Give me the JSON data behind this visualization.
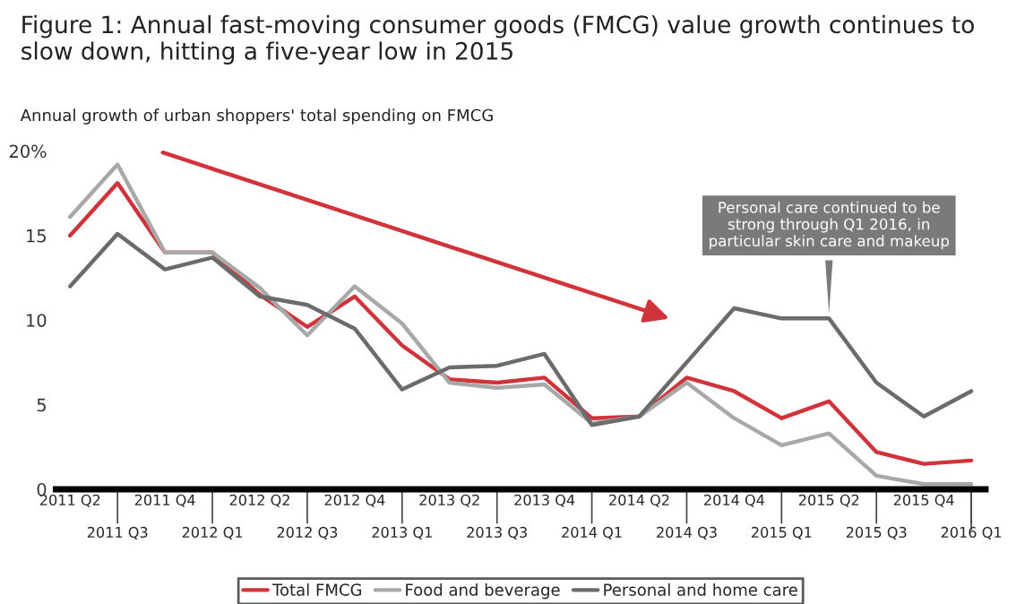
{
  "chart_data": {
    "type": "line",
    "title": "Figure 1: Annual fast-moving consumer goods (FMCG) value growth continues to slow down, hitting a five-year low in 2015",
    "subtitle": "Annual growth of urban shoppers' total spending on FMCG",
    "categories": [
      "2011 Q2",
      "2011 Q3",
      "2011 Q4",
      "2012 Q1",
      "2012 Q2",
      "2012 Q3",
      "2012 Q4",
      "2013 Q1",
      "2013 Q2",
      "2013 Q3",
      "2013 Q4",
      "2014 Q1",
      "2014 Q2",
      "2014 Q3",
      "2014 Q4",
      "2015 Q1",
      "2015 Q2",
      "2015 Q3",
      "2015 Q4",
      "2016 Q1"
    ],
    "series": [
      {
        "name": "Total FMCG",
        "color": "#d0343a",
        "values": [
          15.0,
          18.1,
          14.0,
          14.0,
          11.5,
          9.6,
          11.4,
          8.5,
          6.5,
          6.3,
          6.6,
          4.2,
          4.3,
          6.6,
          5.8,
          4.2,
          5.2,
          2.2,
          1.5,
          1.7
        ]
      },
      {
        "name": "Food and beverage",
        "color": "#a8a8a8",
        "values": [
          16.1,
          19.2,
          14.0,
          14.0,
          11.9,
          9.1,
          12.0,
          9.8,
          6.3,
          6.0,
          6.2,
          3.9,
          4.3,
          6.3,
          4.2,
          2.6,
          3.3,
          0.8,
          0.3,
          0.3
        ]
      },
      {
        "name": "Personal and home care",
        "color": "#6b6b6b",
        "values": [
          12.0,
          15.1,
          13.0,
          13.7,
          11.4,
          10.9,
          9.5,
          5.9,
          7.2,
          7.3,
          8.0,
          3.8,
          4.3,
          7.5,
          10.7,
          10.1,
          10.1,
          6.3,
          4.3,
          5.8
        ]
      }
    ],
    "ylim": [
      0,
      20
    ],
    "yticks": [
      0,
      5,
      10,
      15,
      {
        "value": 20,
        "label": "20%"
      }
    ],
    "grid": false,
    "legend": "bottom",
    "marker": "none",
    "line_style": "solid",
    "annotations": [
      {
        "text": "Personal care continued to be strong through Q1 2016, in particular skin care and makeup",
        "x": "2015 Q2",
        "y": 10.1
      }
    ]
  }
}
